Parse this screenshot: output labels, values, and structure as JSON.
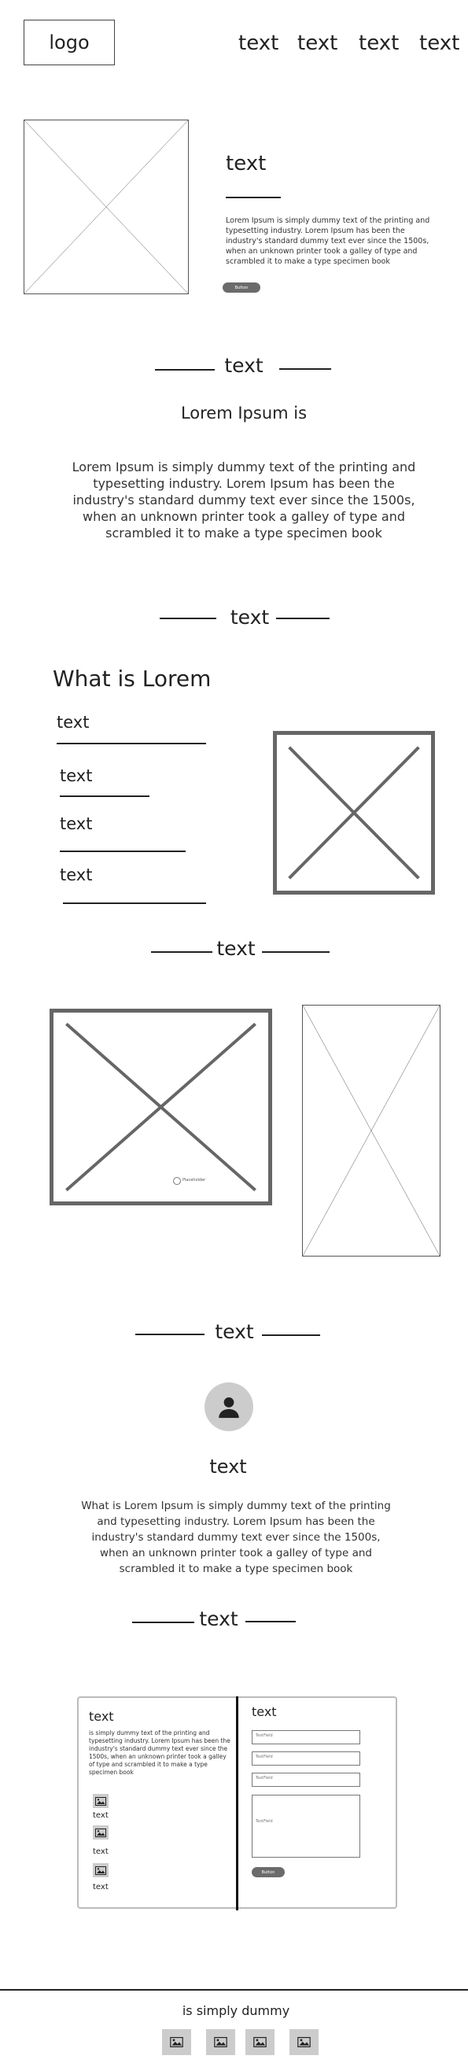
{
  "header": {
    "logo": "logo",
    "nav": [
      "text",
      "text",
      "text",
      "text"
    ]
  },
  "hero": {
    "title": "text",
    "body": "Lorem Ipsum is simply dummy text of the printing and typesetting industry. Lorem Ipsum has been the industry's standard dummy text ever since the 1500s, when an unknown printer took a galley of type and scrambled it to make a type specimen book",
    "button": "Button"
  },
  "section1": {
    "heading": "text",
    "subheading": "Lorem Ipsum is",
    "body": "Lorem Ipsum is simply dummy text of the printing and typesetting industry. Lorem Ipsum has been the industry's standard dummy text ever since the 1500s, when an unknown printer took a galley of type and scrambled it to make a type specimen book"
  },
  "section2": {
    "heading": "text",
    "title": "What is Lorem",
    "items": [
      "text",
      "text",
      "text",
      "text"
    ]
  },
  "section3": {
    "heading": "text",
    "caption": "Placeholder"
  },
  "section4": {
    "heading": "text",
    "name": "text",
    "body": "What is Lorem Ipsum  is simply dummy text of the printing and typesetting industry. Lorem Ipsum has been the industry's standard dummy text ever since the 1500s, when an unknown printer took a galley of type and scrambled it to make a type specimen book"
  },
  "section5": {
    "heading": "text",
    "left": {
      "title": "text",
      "body": "is simply dummy text of the printing and typesetting industry. Lorem Ipsum has been the industry's standard dummy text ever since the 1500s, when an unknown printer took a galley of type and scrambled it to make a type specimen book",
      "icon_labels": [
        "text",
        "text",
        "text"
      ]
    },
    "form": {
      "title": "text",
      "fields": [
        "TextField",
        "TextField",
        "TextField"
      ],
      "textarea": "TextField",
      "button": "Button"
    }
  },
  "footer": {
    "text": "is simply dummy",
    "icons": [
      "image-icon",
      "image-icon",
      "image-icon",
      "image-icon"
    ]
  },
  "colors": {
    "pill": "#6b6b6b",
    "placeholder_stroke": "#666666"
  }
}
